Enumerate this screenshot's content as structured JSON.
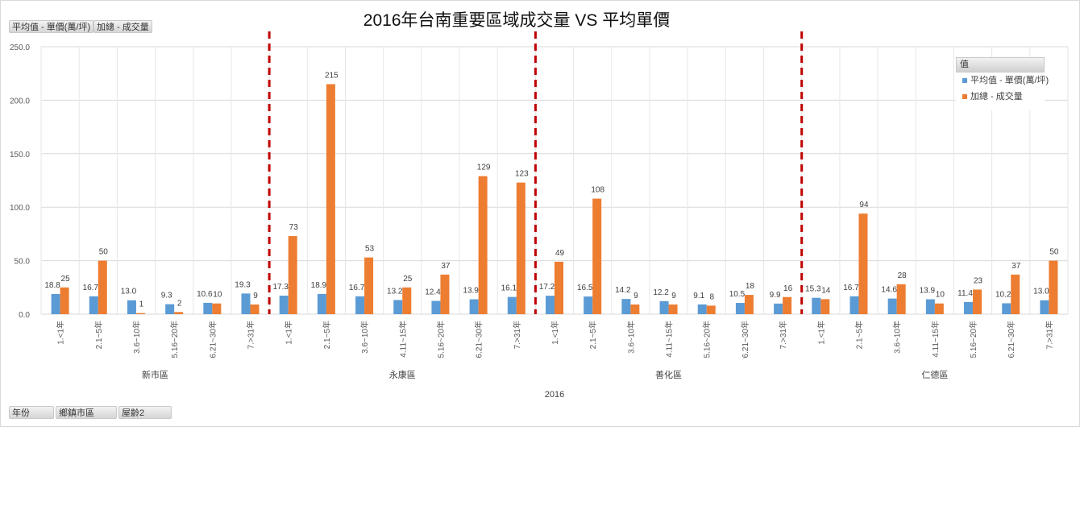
{
  "title": "2016年台南重要區域成交量 VS 平均單價",
  "value_fields": [
    "平均值 - 單價(萬/坪)",
    "加總 - 成交量"
  ],
  "row_fields": [
    "年份",
    "鄉鎮市區",
    "屋齡2"
  ],
  "legend": {
    "header": "值",
    "items": [
      {
        "label": "平均值 - 單價(萬/坪)",
        "color": "#5b9bd5"
      },
      {
        "label": "加總 - 成交量",
        "color": "#ed7d31"
      }
    ]
  },
  "chart_data": {
    "type": "bar",
    "title": "2016年台南重要區域成交量 VS 平均單價",
    "year_label": "2016",
    "ylim": [
      0,
      250
    ],
    "yticks": [
      "0.0",
      "50.0",
      "100.0",
      "150.0",
      "200.0",
      "250.0"
    ],
    "grid": true,
    "legend_position": "top-right",
    "divider_color": "#c00000",
    "groups": [
      {
        "name": "新市區",
        "categories": [
          "1.<1年",
          "2.1~5年",
          "3.6~10年",
          "5.16~20年",
          "6.21~30年",
          "7.>31年"
        ]
      },
      {
        "name": "永康區",
        "categories": [
          "1.<1年",
          "2.1~5年",
          "3.6~10年",
          "4.11~15年",
          "5.16~20年",
          "6.21~30年",
          "7.>31年"
        ]
      },
      {
        "name": "善化區",
        "categories": [
          "1.<1年",
          "2.1~5年",
          "3.6~10年",
          "4.11~15年",
          "5.16~20年",
          "6.21~30年",
          "7.>31年"
        ]
      },
      {
        "name": "仁德區",
        "categories": [
          "1.<1年",
          "2.1~5年",
          "3.6~10年",
          "4.11~15年",
          "5.16~20年",
          "6.21~30年",
          "7.>31年"
        ]
      }
    ],
    "series": [
      {
        "name": "平均值 - 單價(萬/坪)",
        "color": "#5b9bd5",
        "values": [
          18.8,
          16.7,
          13.0,
          9.3,
          10.6,
          19.3,
          17.3,
          18.9,
          16.7,
          13.2,
          12.4,
          13.9,
          16.1,
          17.2,
          16.5,
          14.2,
          12.2,
          9.1,
          10.5,
          9.9,
          15.3,
          16.7,
          14.6,
          13.9,
          11.4,
          10.2,
          13.0
        ],
        "labels": [
          "18.8",
          "16.7",
          "13.0",
          "9.3",
          "10.6",
          "19.3",
          "17.3",
          "18.9",
          "16.7",
          "13.2",
          "12.4",
          "13.9",
          "16.1",
          "17.2",
          "16.5",
          "14.2",
          "12.2",
          "9.1",
          "10.5",
          "9.9",
          "15.3",
          "16.7",
          "14.6",
          "13.9",
          "11.4",
          "10.2",
          "13.0"
        ]
      },
      {
        "name": "加總 - 成交量",
        "color": "#ed7d31",
        "values": [
          25,
          50,
          1,
          2,
          10,
          9,
          73,
          215,
          53,
          25,
          37,
          129,
          123,
          49,
          108,
          9,
          9,
          8,
          18,
          16,
          14,
          94,
          28,
          10,
          23,
          37,
          50
        ],
        "labels": [
          "25",
          "50",
          "1",
          "2",
          "10",
          "9",
          "73",
          "215",
          "53",
          "25",
          "37",
          "129",
          "123",
          "49",
          "108",
          "9",
          "9",
          "8",
          "18",
          "16",
          "14",
          "94",
          "28",
          "10",
          "23",
          "37",
          "50"
        ]
      }
    ]
  }
}
